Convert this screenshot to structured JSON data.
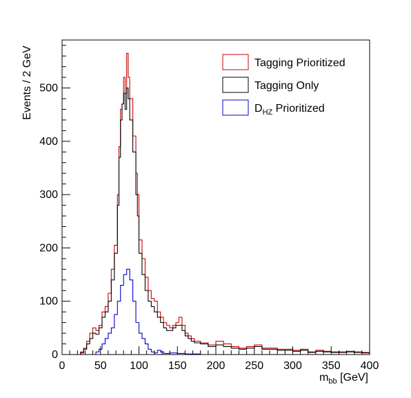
{
  "chart_data": {
    "type": "line",
    "step": true,
    "title": "",
    "xlabel": {
      "main": "m",
      "sub": "bb",
      "unit": " [GeV]"
    },
    "ylabel": "Events / 2 GeV",
    "xlim": [
      0,
      400
    ],
    "ylim": [
      0,
      590
    ],
    "xticks": [
      0,
      50,
      100,
      150,
      200,
      250,
      300,
      350,
      400
    ],
    "yticks": [
      0,
      100,
      200,
      300,
      400,
      500
    ],
    "grid": false,
    "legend_position": "top-right",
    "bin_width": 2,
    "series": [
      {
        "name": "Tagging Prioritized",
        "color": "#cc0000",
        "x_bins": [
          [
            20,
            0
          ],
          [
            24,
            5
          ],
          [
            28,
            12
          ],
          [
            32,
            25
          ],
          [
            36,
            40
          ],
          [
            40,
            50
          ],
          [
            44,
            45
          ],
          [
            48,
            55
          ],
          [
            52,
            80
          ],
          [
            56,
            90
          ],
          [
            60,
            115
          ],
          [
            64,
            160
          ],
          [
            68,
            205
          ],
          [
            72,
            300
          ],
          [
            74,
            390
          ],
          [
            76,
            460
          ],
          [
            78,
            470
          ],
          [
            80,
            520
          ],
          [
            82,
            490
          ],
          [
            84,
            565
          ],
          [
            86,
            520
          ],
          [
            88,
            480
          ],
          [
            92,
            410
          ],
          [
            96,
            340
          ],
          [
            98,
            300
          ],
          [
            100,
            215
          ],
          [
            104,
            180
          ],
          [
            108,
            145
          ],
          [
            112,
            120
          ],
          [
            116,
            105
          ],
          [
            120,
            100
          ],
          [
            124,
            80
          ],
          [
            128,
            70
          ],
          [
            132,
            60
          ],
          [
            136,
            55
          ],
          [
            140,
            50
          ],
          [
            144,
            55
          ],
          [
            148,
            60
          ],
          [
            152,
            70
          ],
          [
            156,
            55
          ],
          [
            160,
            40
          ],
          [
            164,
            35
          ],
          [
            168,
            30
          ],
          [
            172,
            25
          ],
          [
            180,
            22
          ],
          [
            190,
            18
          ],
          [
            200,
            25
          ],
          [
            210,
            20
          ],
          [
            220,
            15
          ],
          [
            230,
            12
          ],
          [
            240,
            15
          ],
          [
            250,
            18
          ],
          [
            260,
            12
          ],
          [
            270,
            12
          ],
          [
            280,
            10
          ],
          [
            290,
            10
          ],
          [
            300,
            8
          ],
          [
            310,
            10
          ],
          [
            320,
            5
          ],
          [
            330,
            8
          ],
          [
            340,
            6
          ],
          [
            350,
            5
          ],
          [
            360,
            5
          ],
          [
            370,
            6
          ],
          [
            380,
            5
          ],
          [
            390,
            4
          ],
          [
            400,
            0
          ]
        ]
      },
      {
        "name": "Tagging Only",
        "color": "#000000",
        "x_bins": [
          [
            20,
            0
          ],
          [
            24,
            3
          ],
          [
            28,
            10
          ],
          [
            32,
            20
          ],
          [
            36,
            30
          ],
          [
            40,
            40
          ],
          [
            44,
            38
          ],
          [
            48,
            50
          ],
          [
            52,
            70
          ],
          [
            56,
            80
          ],
          [
            60,
            100
          ],
          [
            64,
            140
          ],
          [
            68,
            190
          ],
          [
            72,
            280
          ],
          [
            74,
            370
          ],
          [
            76,
            440
          ],
          [
            78,
            470
          ],
          [
            80,
            490
          ],
          [
            82,
            460
          ],
          [
            84,
            500
          ],
          [
            86,
            480
          ],
          [
            88,
            440
          ],
          [
            92,
            380
          ],
          [
            96,
            300
          ],
          [
            98,
            260
          ],
          [
            100,
            190
          ],
          [
            104,
            150
          ],
          [
            108,
            120
          ],
          [
            112,
            100
          ],
          [
            116,
            90
          ],
          [
            120,
            80
          ],
          [
            124,
            70
          ],
          [
            128,
            60
          ],
          [
            132,
            50
          ],
          [
            136,
            45
          ],
          [
            140,
            45
          ],
          [
            144,
            50
          ],
          [
            148,
            55
          ],
          [
            152,
            55
          ],
          [
            156,
            45
          ],
          [
            160,
            35
          ],
          [
            164,
            30
          ],
          [
            168,
            25
          ],
          [
            172,
            22
          ],
          [
            180,
            20
          ],
          [
            190,
            15
          ],
          [
            200,
            18
          ],
          [
            210,
            15
          ],
          [
            220,
            12
          ],
          [
            230,
            10
          ],
          [
            240,
            12
          ],
          [
            250,
            15
          ],
          [
            260,
            10
          ],
          [
            270,
            10
          ],
          [
            280,
            8
          ],
          [
            290,
            8
          ],
          [
            300,
            6
          ],
          [
            310,
            8
          ],
          [
            320,
            4
          ],
          [
            330,
            6
          ],
          [
            340,
            5
          ],
          [
            350,
            4
          ],
          [
            360,
            4
          ],
          [
            370,
            5
          ],
          [
            380,
            4
          ],
          [
            390,
            3
          ],
          [
            400,
            0
          ]
        ]
      },
      {
        "name": "D_HZ Prioritized",
        "label_main": "D",
        "label_sub": "HZ",
        "label_rest": " Prioritized",
        "color": "#0000cc",
        "x_bins": [
          [
            40,
            0
          ],
          [
            44,
            5
          ],
          [
            48,
            10
          ],
          [
            52,
            20
          ],
          [
            56,
            30
          ],
          [
            60,
            40
          ],
          [
            64,
            50
          ],
          [
            68,
            75
          ],
          [
            72,
            100
          ],
          [
            76,
            130
          ],
          [
            80,
            150
          ],
          [
            84,
            160
          ],
          [
            88,
            140
          ],
          [
            92,
            100
          ],
          [
            96,
            60
          ],
          [
            100,
            40
          ],
          [
            104,
            30
          ],
          [
            108,
            20
          ],
          [
            112,
            10
          ],
          [
            116,
            5
          ],
          [
            120,
            3
          ],
          [
            124,
            8
          ],
          [
            128,
            5
          ],
          [
            132,
            2
          ],
          [
            140,
            3
          ],
          [
            150,
            2
          ],
          [
            160,
            1
          ],
          [
            170,
            1
          ],
          [
            180,
            0
          ]
        ]
      }
    ]
  }
}
